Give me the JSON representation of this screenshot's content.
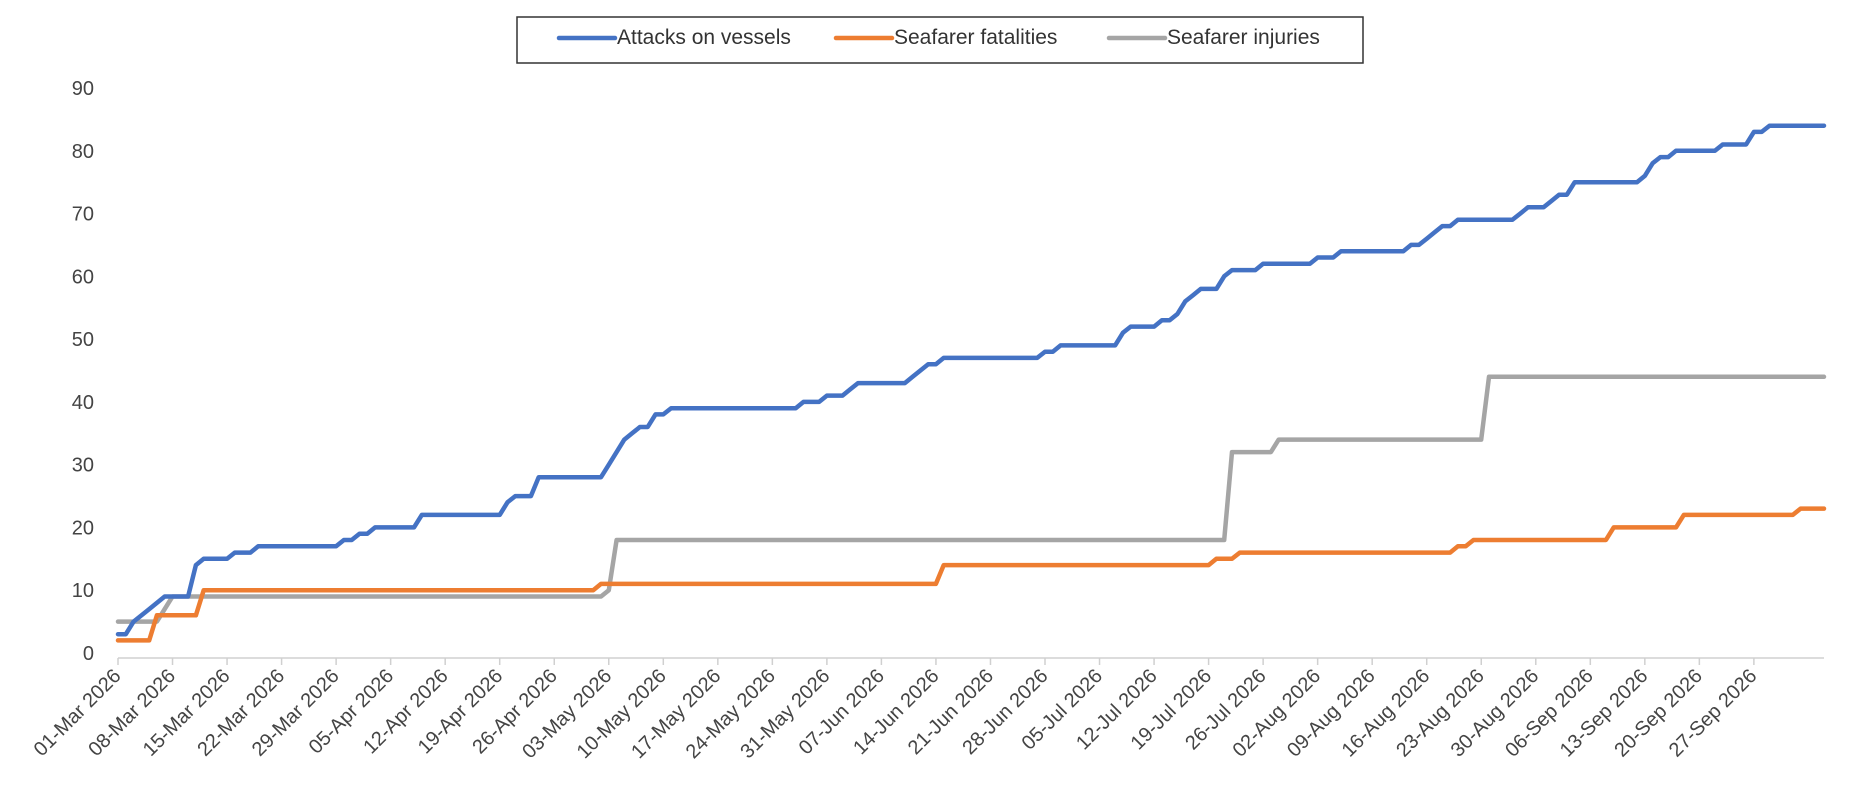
{
  "chart_data": {
    "type": "line",
    "title": "",
    "xlabel": "",
    "ylabel": "",
    "ylim": [
      0,
      90
    ],
    "yticks": [
      0,
      10,
      20,
      30,
      40,
      50,
      60,
      70,
      80,
      90
    ],
    "grid": false,
    "legend_position": "top-center",
    "x_start": "01-Mar-2026",
    "x_end": "27-Sep-2026",
    "x_tick_labels": [
      "01-Mar 2026",
      "08-Mar 2026",
      "15-Mar 2026",
      "22-Mar 2026",
      "29-Mar 2026",
      "05-Apr 2026",
      "12-Apr 2026",
      "19-Apr 2026",
      "26-Apr 2026",
      "03-May 2026",
      "10-May 2026",
      "17-May 2026",
      "24-May 2026",
      "31-May 2026",
      "07-Jun 2026",
      "14-Jun 2026",
      "21-Jun 2026",
      "28-Jun 2026",
      "05-Jul 2026",
      "12-Jul 2026",
      "19-Jul 2026",
      "26-Jul 2026",
      "02-Aug 2026",
      "09-Aug 2026",
      "16-Aug 2026",
      "23-Aug 2026",
      "30-Aug 2026",
      "06-Sep 2026",
      "13-Sep 2026",
      "20-Sep 2026",
      "27-Sep 2026"
    ],
    "series": [
      {
        "name": "Attacks on vessels",
        "color": "#4472C4",
        "points": [
          [
            "2026-03-01",
            3
          ],
          [
            "2026-03-02",
            3
          ],
          [
            "2026-03-03",
            5
          ],
          [
            "2026-03-05",
            7
          ],
          [
            "2026-03-07",
            9
          ],
          [
            "2026-03-10",
            9
          ],
          [
            "2026-03-11",
            14
          ],
          [
            "2026-03-12",
            15
          ],
          [
            "2026-03-15",
            15
          ],
          [
            "2026-03-16",
            16
          ],
          [
            "2026-03-18",
            16
          ],
          [
            "2026-03-19",
            17
          ],
          [
            "2026-03-29",
            17
          ],
          [
            "2026-03-30",
            18
          ],
          [
            "2026-03-31",
            18
          ],
          [
            "2026-04-01",
            19
          ],
          [
            "2026-04-02",
            19
          ],
          [
            "2026-04-03",
            20
          ],
          [
            "2026-04-08",
            20
          ],
          [
            "2026-04-09",
            22
          ],
          [
            "2026-04-19",
            22
          ],
          [
            "2026-04-20",
            24
          ],
          [
            "2026-04-21",
            25
          ],
          [
            "2026-04-23",
            25
          ],
          [
            "2026-04-24",
            28
          ],
          [
            "2026-05-02",
            28
          ],
          [
            "2026-05-03",
            30
          ],
          [
            "2026-05-04",
            32
          ],
          [
            "2026-05-05",
            34
          ],
          [
            "2026-05-06",
            35
          ],
          [
            "2026-05-07",
            36
          ],
          [
            "2026-05-08",
            36
          ],
          [
            "2026-05-09",
            38
          ],
          [
            "2026-05-10",
            38
          ],
          [
            "2026-05-11",
            39
          ],
          [
            "2026-05-27",
            39
          ],
          [
            "2026-05-28",
            40
          ],
          [
            "2026-05-30",
            40
          ],
          [
            "2026-05-31",
            41
          ],
          [
            "2026-06-02",
            41
          ],
          [
            "2026-06-03",
            42
          ],
          [
            "2026-06-04",
            43
          ],
          [
            "2026-06-10",
            43
          ],
          [
            "2026-06-11",
            44
          ],
          [
            "2026-06-12",
            45
          ],
          [
            "2026-06-13",
            46
          ],
          [
            "2026-06-14",
            46
          ],
          [
            "2026-06-15",
            47
          ],
          [
            "2026-06-27",
            47
          ],
          [
            "2026-06-28",
            48
          ],
          [
            "2026-06-29",
            48
          ],
          [
            "2026-06-30",
            49
          ],
          [
            "2026-07-07",
            49
          ],
          [
            "2026-07-08",
            51
          ],
          [
            "2026-07-09",
            52
          ],
          [
            "2026-07-12",
            52
          ],
          [
            "2026-07-13",
            53
          ],
          [
            "2026-07-14",
            53
          ],
          [
            "2026-07-15",
            54
          ],
          [
            "2026-07-16",
            56
          ],
          [
            "2026-07-17",
            57
          ],
          [
            "2026-07-18",
            58
          ],
          [
            "2026-07-20",
            58
          ],
          [
            "2026-07-21",
            60
          ],
          [
            "2026-07-22",
            61
          ],
          [
            "2026-07-25",
            61
          ],
          [
            "2026-07-26",
            62
          ],
          [
            "2026-08-01",
            62
          ],
          [
            "2026-08-02",
            63
          ],
          [
            "2026-08-04",
            63
          ],
          [
            "2026-08-05",
            64
          ],
          [
            "2026-08-13",
            64
          ],
          [
            "2026-08-14",
            65
          ],
          [
            "2026-08-15",
            65
          ],
          [
            "2026-08-16",
            66
          ],
          [
            "2026-08-17",
            67
          ],
          [
            "2026-08-18",
            68
          ],
          [
            "2026-08-19",
            68
          ],
          [
            "2026-08-20",
            69
          ],
          [
            "2026-08-27",
            69
          ],
          [
            "2026-08-28",
            70
          ],
          [
            "2026-08-29",
            71
          ],
          [
            "2026-08-31",
            71
          ],
          [
            "2026-09-01",
            72
          ],
          [
            "2026-09-02",
            73
          ],
          [
            "2026-09-03",
            73
          ],
          [
            "2026-09-04",
            75
          ],
          [
            "2026-09-12",
            75
          ],
          [
            "2026-09-13",
            76
          ],
          [
            "2026-09-14",
            78
          ],
          [
            "2026-09-15",
            79
          ],
          [
            "2026-09-16",
            79
          ],
          [
            "2026-09-17",
            80
          ],
          [
            "2026-09-22",
            80
          ],
          [
            "2026-09-23",
            81
          ],
          [
            "2026-09-26",
            81
          ],
          [
            "2026-09-27",
            83
          ],
          [
            "2026-09-28",
            83
          ],
          [
            "2026-09-29",
            84
          ],
          [
            "2026-10-06",
            84
          ]
        ]
      },
      {
        "name": "Seafarer fatalities",
        "color": "#ED7D31",
        "points": [
          [
            "2026-03-01",
            2
          ],
          [
            "2026-03-05",
            2
          ],
          [
            "2026-03-06",
            6
          ],
          [
            "2026-03-11",
            6
          ],
          [
            "2026-03-12",
            10
          ],
          [
            "2026-05-01",
            10
          ],
          [
            "2026-05-02",
            11
          ],
          [
            "2026-06-14",
            11
          ],
          [
            "2026-06-15",
            14
          ],
          [
            "2026-07-19",
            14
          ],
          [
            "2026-07-20",
            15
          ],
          [
            "2026-07-22",
            15
          ],
          [
            "2026-07-23",
            16
          ],
          [
            "2026-08-19",
            16
          ],
          [
            "2026-08-20",
            17
          ],
          [
            "2026-08-21",
            17
          ],
          [
            "2026-08-22",
            18
          ],
          [
            "2026-09-08",
            18
          ],
          [
            "2026-09-09",
            20
          ],
          [
            "2026-09-17",
            20
          ],
          [
            "2026-09-18",
            22
          ],
          [
            "2026-10-02",
            22
          ],
          [
            "2026-10-03",
            23
          ],
          [
            "2026-10-06",
            23
          ]
        ]
      },
      {
        "name": "Seafarer injuries",
        "color": "#A5A5A5",
        "points": [
          [
            "2026-03-01",
            5
          ],
          [
            "2026-03-06",
            5
          ],
          [
            "2026-03-08",
            9
          ],
          [
            "2026-05-02",
            9
          ],
          [
            "2026-05-03",
            10
          ],
          [
            "2026-05-04",
            18
          ],
          [
            "2026-07-21",
            18
          ],
          [
            "2026-07-22",
            32
          ],
          [
            "2026-07-27",
            32
          ],
          [
            "2026-07-28",
            34
          ],
          [
            "2026-08-23",
            34
          ],
          [
            "2026-08-24",
            44
          ],
          [
            "2026-10-06",
            44
          ]
        ]
      }
    ]
  }
}
